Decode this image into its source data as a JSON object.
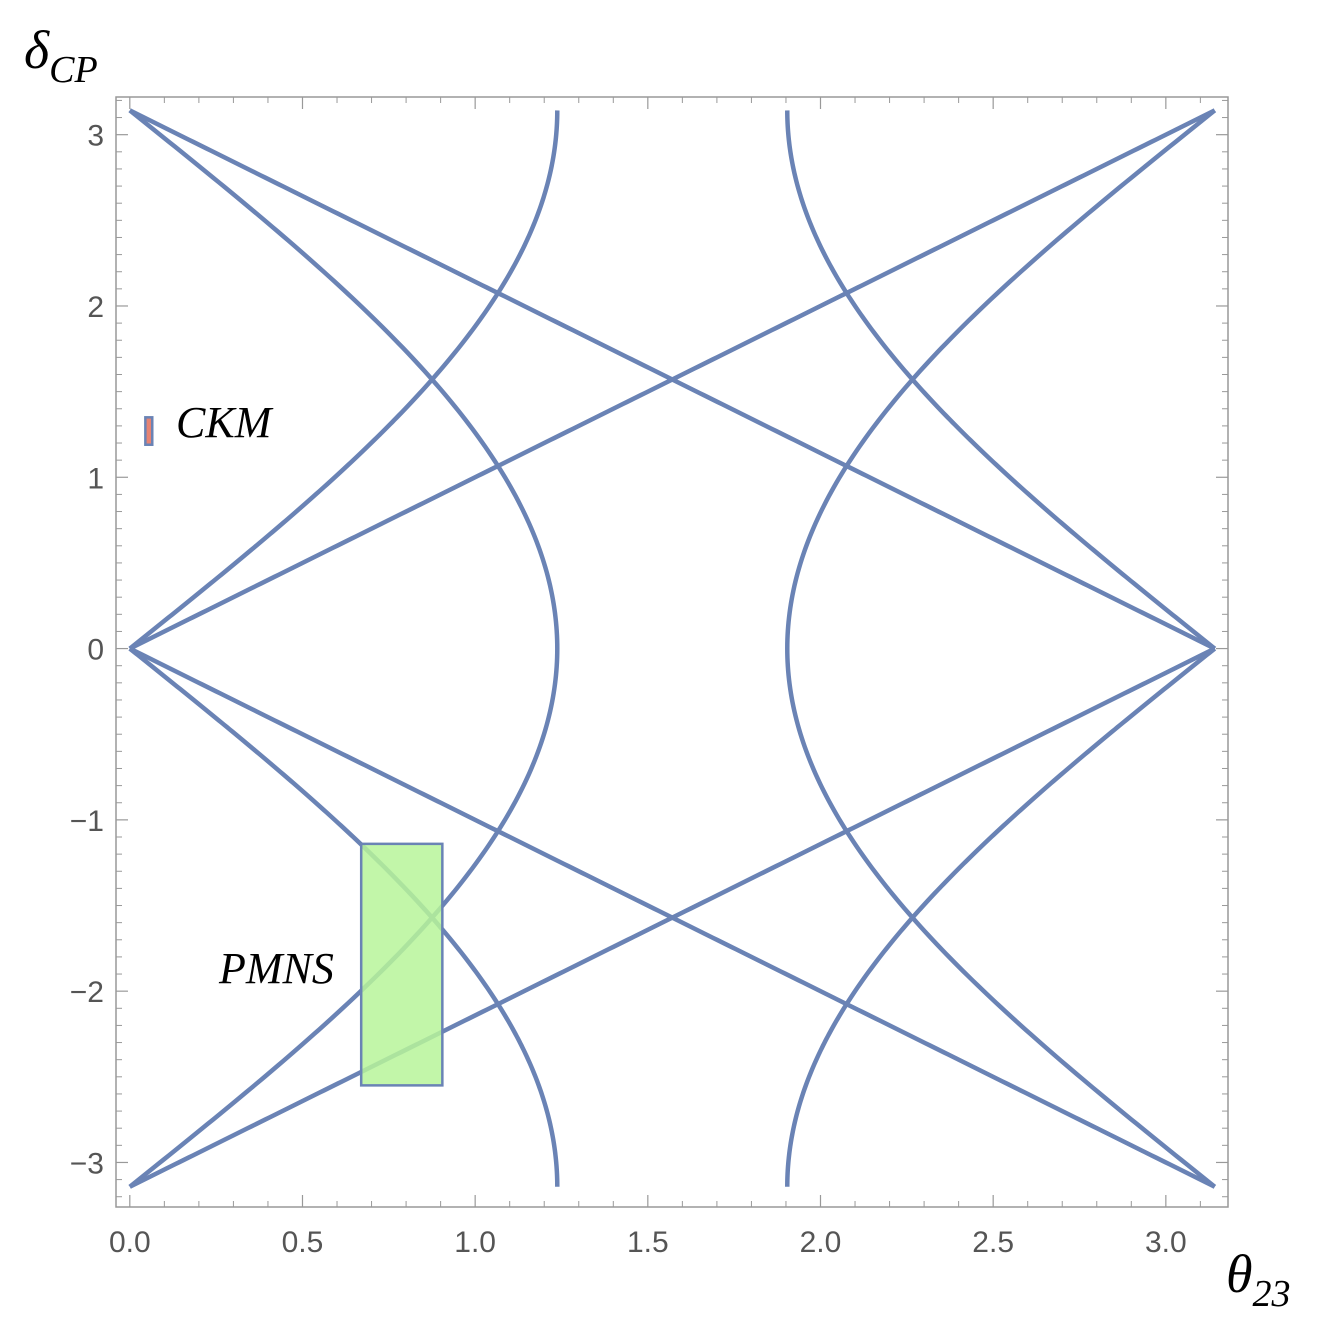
{
  "chart_data": {
    "type": "line",
    "xlabel": {
      "base": "θ",
      "sub": "23"
    },
    "ylabel": {
      "base": "δ",
      "sub": "CP"
    },
    "xlim": [
      -0.04,
      3.18
    ],
    "ylim": [
      -3.26,
      3.22
    ],
    "x_ticks": [
      0.0,
      0.5,
      1.0,
      1.5,
      2.0,
      2.5,
      3.0
    ],
    "x_tick_labels": [
      "0.0",
      "0.5",
      "1.0",
      "1.5",
      "2.0",
      "2.5",
      "3.0"
    ],
    "y_ticks": [
      -3,
      -2,
      -1,
      0,
      1,
      2,
      3
    ],
    "y_tick_labels": [
      "−3",
      "−2",
      "−1",
      "0",
      "1",
      "2",
      "3"
    ],
    "grid": false,
    "curve_color": "#6a83b5",
    "curves": {
      "arc_left_center": 0.0,
      "arc_left_radius": 1.2378,
      "arc_right_center": 3.1416,
      "arc_right_radius": 1.2378,
      "cusp_lines": [
        {
          "x0": 0.0,
          "x1": 1.2378,
          "y_start": 0.0,
          "y_end": 3.1416
        },
        {
          "x0": 3.1416,
          "x1": 1.9038,
          "y_start": 0.0,
          "y_end": 3.1416
        }
      ]
    },
    "regions": [
      {
        "name": "PMNS",
        "x_range": [
          0.67,
          0.905
        ],
        "y_range": [
          -2.55,
          -1.14
        ],
        "fill": "#b7f59a",
        "stroke": "#6a83b5"
      },
      {
        "name": "CKM",
        "x_range": [
          0.045,
          0.065
        ],
        "y_range": [
          1.19,
          1.35
        ],
        "fill": "#e26d5a",
        "stroke": "#6a83b5"
      }
    ]
  }
}
